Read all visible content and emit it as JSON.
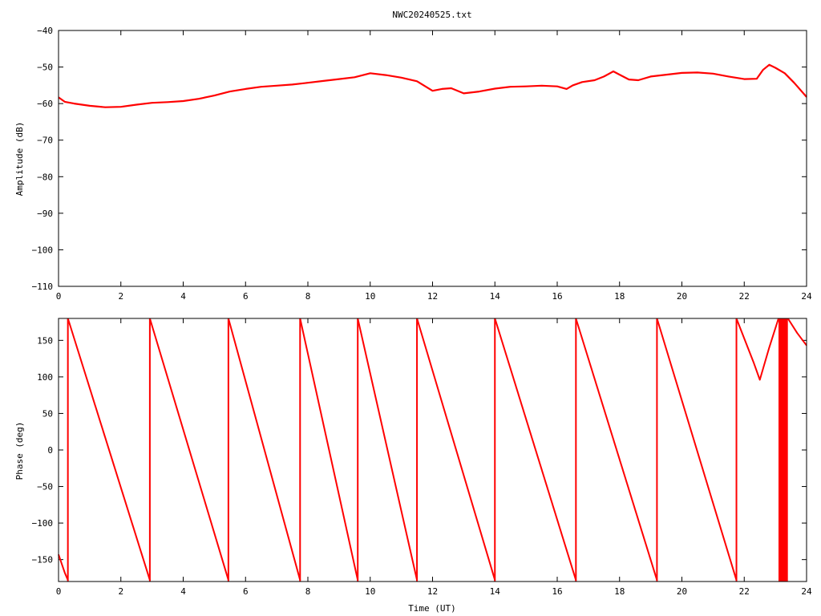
{
  "title": "NWC20240525.txt",
  "colors": {
    "series": "#ff0000",
    "axis": "#000000",
    "background": "#ffffff"
  },
  "chart_data": [
    {
      "type": "line",
      "title": "NWC20240525.txt",
      "xlabel": "",
      "ylabel": "Amplitude (dB)",
      "xlim": [
        0,
        24
      ],
      "ylim": [
        -110,
        -40
      ],
      "xticks": [
        0,
        2,
        4,
        6,
        8,
        10,
        12,
        14,
        16,
        18,
        20,
        22,
        24
      ],
      "yticks": [
        -110,
        -100,
        -90,
        -80,
        -70,
        -60,
        -50,
        -40
      ],
      "grid": false,
      "series": [
        {
          "x": [
            0,
            0.2,
            0.5,
            1.0,
            1.5,
            2.0,
            2.5,
            3.0,
            3.5,
            4.0,
            4.5,
            5.0,
            5.5,
            6.0,
            6.5,
            7.0,
            7.5,
            8.0,
            8.5,
            9.0,
            9.5,
            10.0,
            10.5,
            11.0,
            11.5,
            12.0,
            12.3,
            12.6,
            13.0,
            13.5,
            14.0,
            14.5,
            15.0,
            15.5,
            16.0,
            16.3,
            16.5,
            16.8,
            17.2,
            17.5,
            17.8,
            18.0,
            18.3,
            18.6,
            19.0,
            19.5,
            20.0,
            20.5,
            21.0,
            21.5,
            22.0,
            22.4,
            22.6,
            22.8,
            23.0,
            23.3,
            23.6,
            24.0
          ],
          "values": [
            -58.3,
            -59.5,
            -60.0,
            -60.6,
            -61.0,
            -60.9,
            -60.3,
            -59.8,
            -59.6,
            -59.3,
            -58.7,
            -57.8,
            -56.7,
            -56.0,
            -55.4,
            -55.1,
            -54.8,
            -54.3,
            -53.8,
            -53.3,
            -52.8,
            -51.7,
            -52.2,
            -52.9,
            -53.9,
            -56.5,
            -56.0,
            -55.8,
            -57.2,
            -56.7,
            -55.9,
            -55.4,
            -55.3,
            -55.1,
            -55.3,
            -56.0,
            -55.0,
            -54.1,
            -53.6,
            -52.6,
            -51.2,
            -52.1,
            -53.4,
            -53.6,
            -52.6,
            -52.1,
            -51.6,
            -51.5,
            -51.8,
            -52.6,
            -53.3,
            -53.2,
            -50.8,
            -49.4,
            -50.2,
            -51.7,
            -54.3,
            -58.2
          ]
        }
      ]
    },
    {
      "type": "line",
      "title": "",
      "xlabel": "Time (UT)",
      "ylabel": "Phase (deg)",
      "xlim": [
        0,
        24
      ],
      "ylim": [
        -180,
        180
      ],
      "xticks": [
        0,
        2,
        4,
        6,
        8,
        10,
        12,
        14,
        16,
        18,
        20,
        22,
        24
      ],
      "yticks": [
        -150,
        -100,
        -50,
        0,
        50,
        100,
        150
      ],
      "grid": false,
      "segments": [
        {
          "x": [
            0,
            0.2,
            0.3
          ],
          "values": [
            -143,
            -168,
            -178
          ]
        },
        {
          "x": [
            0.3,
            2.93
          ],
          "values": [
            180,
            -178
          ]
        },
        {
          "x": [
            2.93,
            5.45
          ],
          "values": [
            180,
            -178
          ]
        },
        {
          "x": [
            5.45,
            7.75
          ],
          "values": [
            180,
            -178
          ]
        },
        {
          "x": [
            7.75,
            9.6
          ],
          "values": [
            180,
            -178
          ]
        },
        {
          "x": [
            9.6,
            11.5
          ],
          "values": [
            180,
            -178
          ]
        },
        {
          "x": [
            11.5,
            14.0
          ],
          "values": [
            180,
            -178
          ]
        },
        {
          "x": [
            14.0,
            16.6
          ],
          "values": [
            180,
            -178
          ]
        },
        {
          "x": [
            16.6,
            19.2
          ],
          "values": [
            180,
            -178
          ]
        },
        {
          "x": [
            19.2,
            21.75
          ],
          "values": [
            180,
            -178
          ]
        },
        {
          "x": [
            21.75,
            22.3,
            22.5,
            22.8,
            23.1
          ],
          "values": [
            180,
            120,
            96,
            140,
            180
          ]
        },
        {
          "x": [
            23.4,
            23.7,
            24.0
          ],
          "values": [
            180,
            160,
            143
          ]
        }
      ],
      "wraps": [
        0.3,
        2.93,
        5.45,
        7.75,
        9.6,
        11.5,
        14.0,
        16.6,
        19.2,
        21.75
      ],
      "filled_band": {
        "x": [
          23.1,
          23.4
        ],
        "y": [
          -180,
          180
        ]
      }
    }
  ]
}
